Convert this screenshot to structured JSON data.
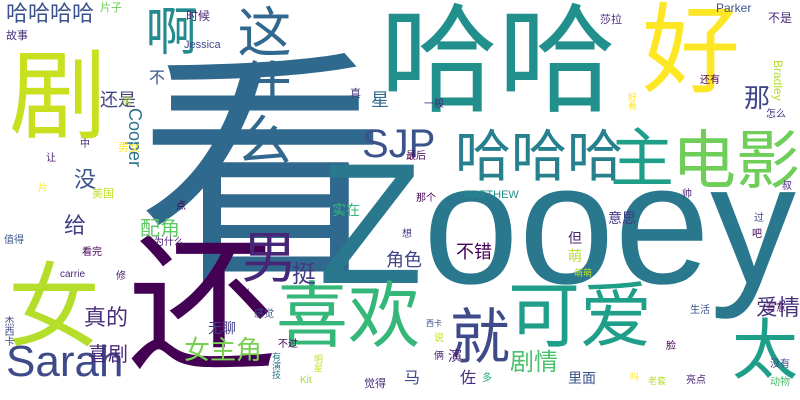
{
  "word_cloud": {
    "words": [
      {
        "text": "看",
        "color": "#30698e",
        "weight": 1.0
      },
      {
        "text": "Zooey",
        "color": "#2a788e",
        "weight": 0.95
      },
      {
        "text": "哈哈",
        "color": "#21908d",
        "weight": 0.7
      },
      {
        "text": "还",
        "color": "#440154",
        "weight": 0.65
      },
      {
        "text": "好",
        "color": "#fde725",
        "weight": 0.62
      },
      {
        "text": "剧",
        "color": "#c8e020",
        "weight": 0.6
      },
      {
        "text": "女",
        "color": "#b5de2b",
        "weight": 0.55
      },
      {
        "text": "喜欢",
        "color": "#35b779",
        "weight": 0.52
      },
      {
        "text": "可爱",
        "color": "#1f9e89",
        "weight": 0.5
      },
      {
        "text": "电影",
        "color": "#6ece58",
        "weight": 0.45
      },
      {
        "text": "主",
        "color": "#1f9e89",
        "weight": 0.42
      },
      {
        "text": "哈哈哈",
        "color": "#27808e",
        "weight": 0.4
      },
      {
        "text": "男",
        "color": "#482677",
        "weight": 0.38
      },
      {
        "text": "就",
        "color": "#3e4a89",
        "weight": 0.37
      },
      {
        "text": "太",
        "color": "#1f9e89",
        "weight": 0.36
      },
      {
        "text": "这什么",
        "color": "#31688e",
        "weight": 0.35
      },
      {
        "text": "啊",
        "color": "#238a8d",
        "weight": 0.34
      },
      {
        "text": "Sarah",
        "color": "#3e4a89",
        "weight": 0.3
      },
      {
        "text": "SJP",
        "color": "#3b528b",
        "weight": 0.28
      },
      {
        "text": "哈哈哈哈",
        "color": "#3b528b",
        "weight": 0.2
      },
      {
        "text": "女主角",
        "color": "#7ad151",
        "weight": 0.22
      },
      {
        "text": "剧情",
        "color": "#4ac16d",
        "weight": 0.2
      },
      {
        "text": "真的",
        "color": "#472d7b",
        "weight": 0.19
      },
      {
        "text": "喜剧",
        "color": "#482878",
        "weight": 0.18
      },
      {
        "text": "挺",
        "color": "#443983",
        "weight": 0.17
      },
      {
        "text": "那",
        "color": "#414487",
        "weight": 0.16
      },
      {
        "text": "爱情",
        "color": "#46327e",
        "weight": 0.16
      },
      {
        "text": "没",
        "color": "#3b528b",
        "weight": 0.15
      },
      {
        "text": "给",
        "color": "#433e85",
        "weight": 0.15
      },
      {
        "text": "配角",
        "color": "#5ec962",
        "weight": 0.14
      },
      {
        "text": "还是",
        "color": "#414487",
        "weight": 0.13
      },
      {
        "text": "Cooper",
        "color": "#2c728e",
        "weight": 0.13
      },
      {
        "text": "角色",
        "color": "#414487",
        "weight": 0.12
      },
      {
        "text": "不错",
        "color": "#440154",
        "weight": 0.12
      },
      {
        "text": "星",
        "color": "#31688e",
        "weight": 0.12
      },
      {
        "text": "意思",
        "color": "#443983",
        "weight": 0.1
      },
      {
        "text": "实在",
        "color": "#35b779",
        "weight": 0.1
      },
      {
        "text": "马",
        "color": "#3e4a89",
        "weight": 0.1
      },
      {
        "text": "佐",
        "color": "#472d7b",
        "weight": 0.1
      },
      {
        "text": "里面",
        "color": "#3b528b",
        "weight": 0.1
      },
      {
        "text": "演",
        "color": "#481f70",
        "weight": 0.09
      },
      {
        "text": "无聊",
        "color": "#433e85",
        "weight": 0.09
      },
      {
        "text": "不",
        "color": "#39568c",
        "weight": 0.09
      },
      {
        "text": "但",
        "color": "#481f70",
        "weight": 0.08
      },
      {
        "text": "萌",
        "color": "#b5de2b",
        "weight": 0.08
      },
      {
        "text": "时候",
        "color": "#482173",
        "weight": 0.07
      },
      {
        "text": "故事",
        "color": "#46327e",
        "weight": 0.07
      },
      {
        "text": "片子",
        "color": "#6ece58",
        "weight": 0.06
      },
      {
        "text": "莎拉",
        "color": "#482878",
        "weight": 0.06
      },
      {
        "text": "Parker",
        "color": "#3b528b",
        "weight": 0.06
      },
      {
        "text": "Jessica",
        "color": "#3e4a89",
        "weight": 0.06
      },
      {
        "text": "Bradley",
        "color": "#b5de2b",
        "weight": 0.06
      },
      {
        "text": "MATTHEW",
        "color": "#21918c",
        "weight": 0.05
      },
      {
        "text": "carrie",
        "color": "#482878",
        "weight": 0.05
      },
      {
        "text": "Kit",
        "color": "#a0da39",
        "weight": 0.05
      },
      {
        "text": "不是",
        "color": "#482878",
        "weight": 0.05
      },
      {
        "text": "还有",
        "color": "#440154",
        "weight": 0.05
      },
      {
        "text": "一般",
        "color": "#482173",
        "weight": 0.05
      },
      {
        "text": "真",
        "color": "#443983",
        "weight": 0.05
      },
      {
        "text": "那个",
        "color": "#440154",
        "weight": 0.05
      },
      {
        "text": "最后",
        "color": "#440154",
        "weight": 0.05
      },
      {
        "text": "美国",
        "color": "#c2df23",
        "weight": 0.05
      },
      {
        "text": "男女",
        "color": "#fde725",
        "weight": 0.05
      },
      {
        "text": "感觉",
        "color": "#3e4a89",
        "weight": 0.05
      },
      {
        "text": "不过",
        "color": "#440154",
        "weight": 0.05
      },
      {
        "text": "觉得",
        "color": "#472d7b",
        "weight": 0.05
      },
      {
        "text": "生活",
        "color": "#3b528b",
        "weight": 0.05
      },
      {
        "text": "有意",
        "color": "#471063",
        "weight": 0.05
      },
      {
        "text": "没有",
        "color": "#3e4a89",
        "weight": 0.05
      },
      {
        "text": "亮点",
        "color": "#482173",
        "weight": 0.05
      },
      {
        "text": "动物",
        "color": "#4ac16d",
        "weight": 0.05
      },
      {
        "text": "怎么",
        "color": "#46327e",
        "weight": 0.05
      },
      {
        "text": "叔",
        "color": "#482878",
        "weight": 0.05
      },
      {
        "text": "帅",
        "color": "#481a6c",
        "weight": 0.05
      },
      {
        "text": "看完",
        "color": "#440154",
        "weight": 0.05
      },
      {
        "text": "值得",
        "color": "#3b528b",
        "weight": 0.05
      },
      {
        "text": "为什么",
        "color": "#481a6c",
        "weight": 0.05
      },
      {
        "text": "点",
        "color": "#440154",
        "weight": 0.05
      },
      {
        "text": "想",
        "color": "#443983",
        "weight": 0.05
      },
      {
        "text": "修",
        "color": "#481a6c",
        "weight": 0.05
      },
      {
        "text": "让",
        "color": "#481a6c",
        "weight": 0.05
      },
      {
        "text": "片",
        "color": "#fde725",
        "weight": 0.05
      },
      {
        "text": "笑",
        "color": "#b5de2b",
        "weight": 0.05
      },
      {
        "text": "多",
        "color": "#22a884",
        "weight": 0.05
      },
      {
        "text": "说",
        "color": "#c8e020",
        "weight": 0.05
      },
      {
        "text": "俩",
        "color": "#482878",
        "weight": 0.05
      },
      {
        "text": "老",
        "color": "#440154",
        "weight": 0.05
      },
      {
        "text": "中",
        "color": "#482878",
        "weight": 0.05
      },
      {
        "text": "过",
        "color": "#3e4a89",
        "weight": 0.05
      },
      {
        "text": "吧",
        "color": "#440154",
        "weight": 0.05
      },
      {
        "text": "杰西卡",
        "color": "#3e4a89",
        "weight": 0.05
      },
      {
        "text": "西卡",
        "color": "#3e4a89",
        "weight": 0.05
      },
      {
        "text": "萌萌",
        "color": "#b5de2b",
        "weight": 0.05
      },
      {
        "text": "好看",
        "color": "#fde725",
        "weight": 0.05
      },
      {
        "text": "吗",
        "color": "#fde725",
        "weight": 0.05
      },
      {
        "text": "明星",
        "color": "#c8e020",
        "weight": 0.05
      },
      {
        "text": "老套",
        "color": "#b5de2b",
        "weight": 0.05
      },
      {
        "text": "有演技",
        "color": "#2a788e",
        "weight": 0.05
      },
      {
        "text": "脸",
        "color": "#440154",
        "weight": 0.05
      }
    ]
  }
}
